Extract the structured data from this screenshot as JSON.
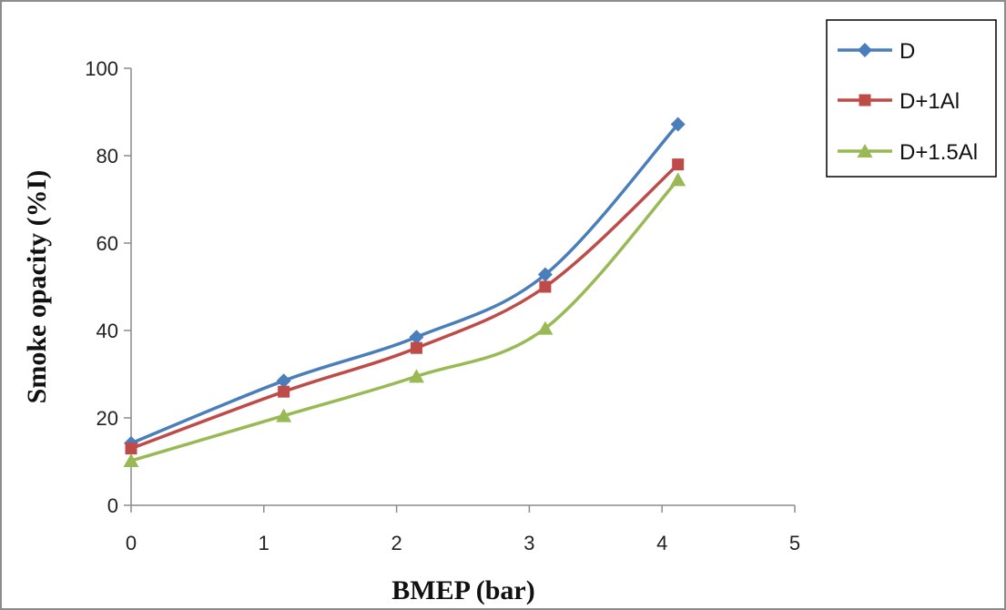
{
  "chart_data": {
    "type": "line",
    "xlabel": "BMEP (bar)",
    "ylabel": "Smoke opacity (%I)",
    "xlim": [
      0,
      5
    ],
    "ylim": [
      0,
      100
    ],
    "x_ticks": [
      0,
      1,
      2,
      3,
      4,
      5
    ],
    "y_ticks": [
      0,
      20,
      40,
      60,
      80,
      100
    ],
    "x_tick_labels": [
      "0",
      "1",
      "2",
      "3",
      "4",
      "5"
    ],
    "y_tick_labels": [
      "0",
      "20",
      "40",
      "60",
      "80",
      "100"
    ],
    "grid": false,
    "legend_position": "top-right",
    "smooth": true,
    "series": [
      {
        "name": "D",
        "color": "#4a7ebb",
        "marker": "diamond",
        "points": [
          [
            0,
            14.2
          ],
          [
            1.15,
            28.5
          ],
          [
            2.15,
            38.5
          ],
          [
            3.12,
            52.8
          ],
          [
            4.12,
            87.2
          ]
        ]
      },
      {
        "name": "D+1Al",
        "color": "#be4b48",
        "marker": "square",
        "points": [
          [
            0,
            13.0
          ],
          [
            1.15,
            26.0
          ],
          [
            2.15,
            36.0
          ],
          [
            3.12,
            50.0
          ],
          [
            4.12,
            78.0
          ]
        ]
      },
      {
        "name": "D+1.5Al",
        "color": "#98b954",
        "marker": "triangle",
        "points": [
          [
            0,
            10.2
          ],
          [
            1.15,
            20.5
          ],
          [
            2.15,
            29.5
          ],
          [
            3.12,
            40.5
          ],
          [
            4.12,
            74.5
          ]
        ]
      }
    ]
  }
}
